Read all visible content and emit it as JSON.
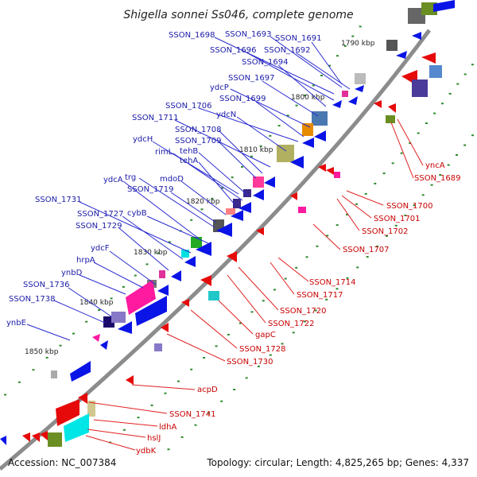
{
  "title": "Shigella sonnei Ss046, complete genome",
  "footer": {
    "accession": "Accession: NC_007384",
    "summary": "Topology: circular; Length: 4,825,265 bp; Genes: 4,337"
  },
  "colors": {
    "backbone": "#8c8c8c",
    "forward_gene": "#0a14e6",
    "reverse_gene": "#e60a0a",
    "blue_label": "#1a1aa8",
    "red_label": "#c80000",
    "tick_dot": "#2e8b2e"
  },
  "kbp_ticks": [
    {
      "label": "1790 kbp"
    },
    {
      "label": "1800 kbp"
    },
    {
      "label": "1810 kbp"
    },
    {
      "label": "1820 kbp"
    },
    {
      "label": "1830 kbp"
    },
    {
      "label": "1840 kbp"
    },
    {
      "label": "1850 kbp"
    }
  ],
  "forward_labels": [
    {
      "text": "SSON_1698"
    },
    {
      "text": "SSON_1693"
    },
    {
      "text": "SSON_1691"
    },
    {
      "text": "SSON_1696"
    },
    {
      "text": "SSON_1692"
    },
    {
      "text": "SSON_1694"
    },
    {
      "text": "SSON_1697"
    },
    {
      "text": "ydcP"
    },
    {
      "text": "SSON_1699"
    },
    {
      "text": "SSON_1706"
    },
    {
      "text": "ydcN"
    },
    {
      "text": "SSON_1711"
    },
    {
      "text": "SSON_1708"
    },
    {
      "text": "ydcH"
    },
    {
      "text": "SSON_1709"
    },
    {
      "text": "rimL"
    },
    {
      "text": "tehB"
    },
    {
      "text": "tehA"
    },
    {
      "text": "ydcA"
    },
    {
      "text": "trg"
    },
    {
      "text": "mdoD"
    },
    {
      "text": "SSON_1719"
    },
    {
      "text": "SSON_1731"
    },
    {
      "text": "cybB"
    },
    {
      "text": "SSON_1727"
    },
    {
      "text": "SSON_1729"
    },
    {
      "text": "ydcF"
    },
    {
      "text": "hrpA"
    },
    {
      "text": "ynbD"
    },
    {
      "text": "SSON_1736"
    },
    {
      "text": "SSON_1738"
    },
    {
      "text": "ynbE"
    }
  ],
  "reverse_labels": [
    {
      "text": "yncA"
    },
    {
      "text": "SSON_1689"
    },
    {
      "text": "SSON_1700"
    },
    {
      "text": "SSON_1701"
    },
    {
      "text": "SSON_1702"
    },
    {
      "text": "SSON_1707"
    },
    {
      "text": "SSON_1714"
    },
    {
      "text": "SSON_1717"
    },
    {
      "text": "SSON_1720"
    },
    {
      "text": "SSON_1722"
    },
    {
      "text": "gapC"
    },
    {
      "text": "SSON_1728"
    },
    {
      "text": "SSON_1730"
    },
    {
      "text": "acpD"
    },
    {
      "text": "SSON_1741"
    },
    {
      "text": "ldhA"
    },
    {
      "text": "hslJ"
    },
    {
      "text": "ydbK"
    }
  ]
}
